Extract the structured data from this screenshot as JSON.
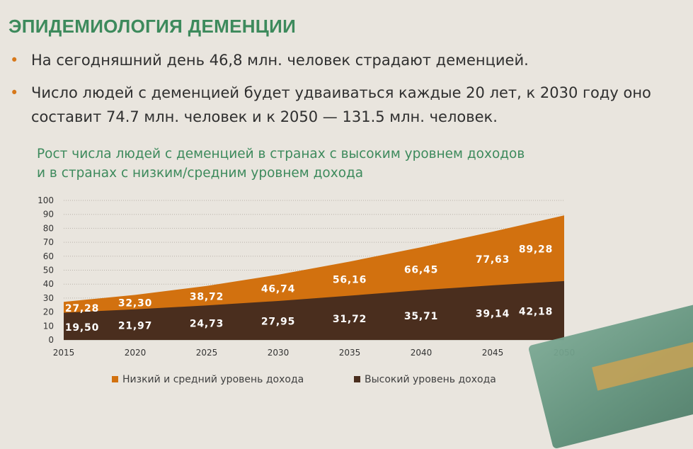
{
  "title": "ЭПИДЕМИОЛОГИЯ ДЕМЕНЦИИ",
  "bullets": [
    "На сегодняшний день 46,8 млн. человек страдают деменцией.",
    "Число людей с деменцией будет удваиваться каждые 20 лет, к 2030 году оно составит 74.7 млн. человек и к 2050 — 131.5 млн. человек."
  ],
  "chart_title_line1": "Рост числа людей с деменцией в странах с высоким уровнем доходов",
  "chart_title_line2": "и в странах с низким/средним уровнем дохода",
  "legend": {
    "low_middle": "Низкий и средний уровень дохода",
    "high": "Высокий уровень дохода"
  },
  "colors": {
    "low_middle": "#d2710f",
    "high": "#4a2e1e",
    "title": "#3d8a5c",
    "bullet_dot": "#d7781a",
    "background": "#e9e5de"
  },
  "chart_data": {
    "type": "area",
    "stacked": false,
    "x": [
      2015,
      2020,
      2025,
      2030,
      2035,
      2040,
      2045,
      2050
    ],
    "ylim": [
      0,
      100
    ],
    "yticks": [
      0,
      10,
      20,
      30,
      40,
      50,
      60,
      70,
      80,
      90,
      100
    ],
    "grid": true,
    "legend_position": "bottom",
    "series": [
      {
        "name": "Низкий и средний уровень дохода",
        "values": [
          27.28,
          32.3,
          38.72,
          46.74,
          56.16,
          66.45,
          77.63,
          89.28
        ],
        "labels": [
          "27,28",
          "32,30",
          "38,72",
          "46,74",
          "56,16",
          "66,45",
          "77,63",
          "89,28"
        ]
      },
      {
        "name": "Высокий уровень дохода",
        "values": [
          19.5,
          21.97,
          24.73,
          27.95,
          31.72,
          35.71,
          39.14,
          42.18
        ],
        "labels": [
          "19,50",
          "21,97",
          "24,73",
          "27,95",
          "31,72",
          "35,71",
          "39,14",
          "42,18"
        ]
      }
    ]
  }
}
